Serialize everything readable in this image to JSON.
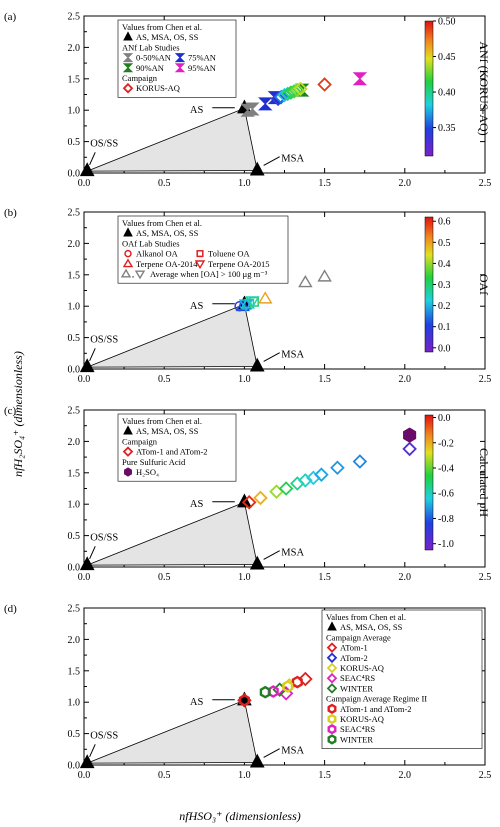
{
  "figure": {
    "ylabel": "nfH₂SO₄⁺ (dimensionless)",
    "xlabel": "nfHSO₃⁺ (dimensionless)"
  },
  "chart_data": [
    {
      "panel": "(a)",
      "type": "scatter",
      "xlim": [
        0,
        2.5
      ],
      "ylim": [
        0,
        2.5
      ],
      "xticks": [
        "0.0",
        "0.5",
        "1.0",
        "1.5",
        "2.0",
        "2.5"
      ],
      "yticks": [
        "0.0",
        "0.5",
        "1.0",
        "1.5",
        "2.0",
        "2.5"
      ],
      "reference_points": [
        {
          "label": "OS/SS",
          "x": 0.02,
          "y": 0.03
        },
        {
          "label": "AS",
          "x": 1.0,
          "y": 1.03
        },
        {
          "label": "MSA",
          "x": 1.08,
          "y": 0.04
        }
      ],
      "legend_title": "Values from Chen et al.",
      "legend": [
        {
          "header": "",
          "items": [
            {
              "label": "AS, MSA, OS, SS",
              "marker": "triangle",
              "color": "#000000"
            }
          ]
        },
        {
          "header": "ANf Lab Studies",
          "items": [
            {
              "label": "0-50%AN",
              "marker": "bowtie",
              "color": "#808080"
            },
            {
              "label": "75%AN",
              "marker": "bowtie",
              "color": "#2030d0"
            },
            {
              "label": "90%AN",
              "marker": "bowtie",
              "color": "#208020"
            },
            {
              "label": "95%AN",
              "marker": "bowtie",
              "color": "#e020c0"
            }
          ]
        },
        {
          "header": "Campaign",
          "items": [
            {
              "label": "KORUS-AQ",
              "marker": "diamond",
              "color": "#e02020"
            }
          ]
        }
      ],
      "series": [
        {
          "name": "0-50%AN",
          "marker": "bowtie",
          "color": "#808080",
          "x": [
            1.02,
            1.05
          ],
          "y": [
            1.0,
            1.02
          ]
        },
        {
          "name": "75%AN",
          "marker": "bowtie",
          "color": "#2030d0",
          "x": [
            1.13,
            1.19
          ],
          "y": [
            1.1,
            1.2
          ]
        },
        {
          "name": "90%AN",
          "marker": "bowtie",
          "color": "#208020",
          "x": [
            1.36
          ],
          "y": [
            1.32
          ]
        },
        {
          "name": "95%AN",
          "marker": "bowtie",
          "color": "#e020c0",
          "x": [
            1.72
          ],
          "y": [
            1.5
          ]
        },
        {
          "name": "KORUS-AQ",
          "marker": "diamond",
          "x": [
            1.21,
            1.23,
            1.25,
            1.27,
            1.29,
            1.31,
            1.33,
            1.35,
            1.5
          ],
          "y": [
            1.18,
            1.21,
            1.24,
            1.26,
            1.28,
            1.3,
            1.32,
            1.34,
            1.41
          ],
          "cvals": [
            0.34,
            0.36,
            0.38,
            0.4,
            0.41,
            0.42,
            0.43,
            0.44,
            0.49
          ]
        }
      ],
      "colorbar": {
        "title": "ANf (KORUS-AQ)",
        "min": 0.31,
        "max": 0.5,
        "ticks": [
          "0.50",
          "0.45",
          "0.40",
          "0.35"
        ],
        "tickvals": [
          0.5,
          0.45,
          0.4,
          0.35
        ]
      }
    },
    {
      "panel": "(b)",
      "type": "scatter",
      "xlim": [
        0,
        2.5
      ],
      "ylim": [
        0,
        2.5
      ],
      "xticks": [
        "0.0",
        "0.5",
        "1.0",
        "1.5",
        "2.0",
        "2.5"
      ],
      "yticks": [
        "0.0",
        "0.5",
        "1.0",
        "1.5",
        "2.0",
        "2.5"
      ],
      "reference_points": [
        {
          "label": "OS/SS",
          "x": 0.02,
          "y": 0.03
        },
        {
          "label": "AS",
          "x": 1.0,
          "y": 1.03
        },
        {
          "label": "MSA",
          "x": 1.08,
          "y": 0.04
        }
      ],
      "legend_title": "Values from Chen et al.",
      "legend": [
        {
          "header": "",
          "items": [
            {
              "label": "AS, MSA, OS, SS",
              "marker": "triangle",
              "color": "#000000"
            }
          ]
        },
        {
          "header": "OAf Lab Studies",
          "items": [
            {
              "label": "Alkanol OA",
              "marker": "circle-open",
              "color": "#e02020"
            },
            {
              "label": "Toluene OA",
              "marker": "square-open",
              "color": "#e02020"
            },
            {
              "label": "Terpene OA-2014",
              "marker": "triangle-open",
              "color": "#e02020"
            },
            {
              "label": "Terpene OA-2015",
              "marker": "triangle-down-open",
              "color": "#e02020"
            },
            {
              "label": "Average when [OA] > 100 μg m⁻³",
              "marker": "triangle-pair-open",
              "color": "#808080"
            }
          ]
        }
      ],
      "series": [
        {
          "name": "Alkanol OA",
          "marker": "circle",
          "x": [
            0.97,
            1.0
          ],
          "y": [
            1.0,
            1.02
          ],
          "cvals": [
            0.08,
            0.18
          ]
        },
        {
          "name": "Toluene OA",
          "marker": "square",
          "x": [
            1.03,
            1.06
          ],
          "y": [
            1.04,
            1.07
          ],
          "cvals": [
            0.28,
            0.3
          ]
        },
        {
          "name": "Terpene OA-2014",
          "marker": "triangle",
          "x": [
            0.99,
            1.02,
            1.13
          ],
          "y": [
            1.0,
            1.04,
            1.12
          ],
          "cvals": [
            0.12,
            0.22,
            0.5
          ]
        },
        {
          "name": "Terpene OA-2015",
          "marker": "triangle-down",
          "x": [
            1.01,
            1.05
          ],
          "y": [
            1.03,
            1.08
          ],
          "cvals": [
            0.2,
            0.26
          ]
        },
        {
          "name": "Average when [OA] > 100 μg m⁻³",
          "marker": "triangle-pair",
          "color": "#808080",
          "x": [
            1.38,
            1.5
          ],
          "y": [
            1.38,
            1.47
          ]
        }
      ],
      "colorbar": {
        "title": "OAf",
        "min": -0.02,
        "max": 0.62,
        "ticks": [
          "0.6",
          "0.5",
          "0.4",
          "0.3",
          "0.2",
          "0.1",
          "0.0"
        ],
        "tickvals": [
          0.6,
          0.5,
          0.4,
          0.3,
          0.2,
          0.1,
          0.0
        ]
      }
    },
    {
      "panel": "(c)",
      "type": "scatter",
      "xlim": [
        0,
        2.5
      ],
      "ylim": [
        0,
        2.5
      ],
      "xticks": [
        "0.0",
        "0.5",
        "1.0",
        "1.5",
        "2.0",
        "2.5"
      ],
      "yticks": [
        "0.0",
        "0.5",
        "1.0",
        "1.5",
        "2.0",
        "2.5"
      ],
      "reference_points": [
        {
          "label": "OS/SS",
          "x": 0.02,
          "y": 0.03
        },
        {
          "label": "AS",
          "x": 1.0,
          "y": 1.03
        },
        {
          "label": "MSA",
          "x": 1.08,
          "y": 0.04
        }
      ],
      "legend_title": "Values from Chen et al.",
      "legend": [
        {
          "header": "",
          "items": [
            {
              "label": "AS, MSA, OS, SS",
              "marker": "triangle",
              "color": "#000000"
            }
          ]
        },
        {
          "header": "Campaign",
          "items": [
            {
              "label": "ATom-1 and ATom-2",
              "marker": "diamond",
              "color": "#e02020"
            }
          ]
        },
        {
          "header": "Pure Sulfuric Acid",
          "items": [
            {
              "label": "H₂SO₄",
              "marker": "hexagon",
              "color": "#6a0a6a"
            }
          ]
        }
      ],
      "series": [
        {
          "name": "ATom-1 and ATom-2",
          "marker": "diamond",
          "x": [
            1.03,
            1.1,
            1.2,
            1.26,
            1.33,
            1.38,
            1.43,
            1.48,
            1.58,
            1.72,
            2.03
          ],
          "y": [
            1.03,
            1.1,
            1.2,
            1.25,
            1.33,
            1.38,
            1.42,
            1.47,
            1.58,
            1.68,
            1.88
          ],
          "cvals": [
            -0.02,
            -0.2,
            -0.35,
            -0.48,
            -0.55,
            -0.6,
            -0.65,
            -0.7,
            -0.72,
            -0.74,
            -0.95
          ]
        },
        {
          "name": "H₂SO₄",
          "marker": "hexagon",
          "color": "#6a0a6a",
          "x": [
            2.03
          ],
          "y": [
            2.1
          ]
        }
      ],
      "colorbar": {
        "title": "Calculated pH",
        "min": -1.05,
        "max": 0.02,
        "ticks": [
          "0.0",
          "-0.2",
          "-0.4",
          "-0.6",
          "-0.8",
          "-1.0"
        ],
        "tickvals": [
          0.0,
          -0.2,
          -0.4,
          -0.6,
          -0.8,
          -1.0
        ]
      }
    },
    {
      "panel": "(d)",
      "type": "scatter",
      "xlim": [
        0,
        2.5
      ],
      "ylim": [
        0,
        2.5
      ],
      "xticks": [
        "0.0",
        "0.5",
        "1.0",
        "1.5",
        "2.0",
        "2.5"
      ],
      "yticks": [
        "0.0",
        "0.5",
        "1.0",
        "1.5",
        "2.0",
        "2.5"
      ],
      "reference_points": [
        {
          "label": "OS/SS",
          "x": 0.02,
          "y": 0.03
        },
        {
          "label": "AS",
          "x": 1.0,
          "y": 1.03
        },
        {
          "label": "MSA",
          "x": 1.08,
          "y": 0.04
        }
      ],
      "legend_title": "Values from Chen et al.",
      "legend": [
        {
          "header": "",
          "items": [
            {
              "label": "AS, MSA, OS, SS",
              "marker": "triangle",
              "color": "#000000"
            }
          ]
        },
        {
          "header": "Campaign Average",
          "items": [
            {
              "label": "ATom-1",
              "marker": "diamond",
              "color": "#e02020"
            },
            {
              "label": "ATom-2",
              "marker": "diamond",
              "color": "#2030d0"
            },
            {
              "label": "KORUS-AQ",
              "marker": "diamond",
              "color": "#d8d020"
            },
            {
              "label": "SEAC⁴RS",
              "marker": "diamond",
              "color": "#e020c0"
            },
            {
              "label": "WINTER",
              "marker": "diamond",
              "color": "#208020"
            }
          ]
        },
        {
          "header": "Campaign Average Regime II",
          "items": [
            {
              "label": "ATom-1 and ATom-2",
              "marker": "hexagon",
              "color": "#e02020"
            },
            {
              "label": "KORUS-AQ",
              "marker": "hexagon",
              "color": "#d8d020"
            },
            {
              "label": "SEAC⁴RS",
              "marker": "hexagon",
              "color": "#e020c0"
            },
            {
              "label": "WINTER",
              "marker": "hexagon",
              "color": "#208020"
            }
          ]
        }
      ],
      "series": [
        {
          "name": "ATom-1",
          "marker": "diamond",
          "color": "#e02020",
          "x": [
            1.0,
            1.38
          ],
          "y": [
            1.03,
            1.37
          ]
        },
        {
          "name": "ATom-2",
          "marker": "diamond",
          "color": "#2030d0",
          "x": [
            1.64
          ],
          "y": [
            1.52
          ]
        },
        {
          "name": "KORUS-AQ",
          "marker": "diamond",
          "color": "#d8d020",
          "x": [
            1.28
          ],
          "y": [
            1.27
          ]
        },
        {
          "name": "SEAC⁴RS",
          "marker": "diamond",
          "color": "#e020c0",
          "x": [
            1.26
          ],
          "y": [
            1.14
          ]
        },
        {
          "name": "WINTER",
          "marker": "diamond",
          "color": "#208020",
          "x": [
            1.22
          ],
          "y": [
            1.2
          ]
        },
        {
          "name": "ATom-1 and ATom-2 (Regime II)",
          "marker": "hexagon",
          "color": "#e02020",
          "x": [
            1.0,
            1.33
          ],
          "y": [
            1.03,
            1.32
          ]
        },
        {
          "name": "KORUS-AQ (Regime II)",
          "marker": "hexagon",
          "color": "#d8d020",
          "x": [
            1.27
          ],
          "y": [
            1.25
          ]
        },
        {
          "name": "SEAC⁴RS (Regime II)",
          "marker": "hexagon",
          "color": "#e020c0",
          "x": [
            1.18
          ],
          "y": [
            1.17
          ]
        },
        {
          "name": "WINTER (Regime II)",
          "marker": "hexagon",
          "color": "#208020",
          "x": [
            1.13
          ],
          "y": [
            1.16
          ]
        }
      ]
    }
  ]
}
